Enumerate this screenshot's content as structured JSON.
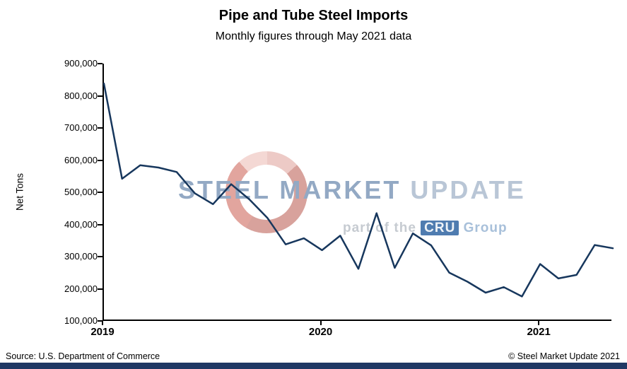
{
  "title": "Pipe and Tube Steel Imports",
  "subtitle": "Monthly figures through May 2021 data",
  "footer": {
    "source": "Source: U.S. Department of Commerce",
    "copyright": "© Steel Market Update 2021"
  },
  "watermark": {
    "brand_primary": "STEEL MARKET",
    "brand_secondary": "UPDATE",
    "tagline_prefix": "part of the",
    "tagline_brand": "CRU",
    "tagline_suffix": "Group"
  },
  "chart_data": {
    "type": "line",
    "title": "Pipe and Tube Steel Imports",
    "subtitle": "Monthly figures through May 2021 data",
    "ylabel": "Net Tons",
    "xlabel": "",
    "ylim": [
      100000,
      900000
    ],
    "y_tick_labels": [
      "900,000",
      "800,000",
      "700,000",
      "600,000",
      "500,000",
      "400,000",
      "300,000",
      "200,000",
      "100,000"
    ],
    "x_tick_labels": [
      "2019",
      "2020",
      "2021"
    ],
    "x_tick_month_index": [
      0,
      12,
      24
    ],
    "grid": false,
    "legend": "none",
    "line_color": "#17375D",
    "months": [
      "Jan 2019",
      "Feb 2019",
      "Mar 2019",
      "Apr 2019",
      "May 2019",
      "Jun 2019",
      "Jul 2019",
      "Aug 2019",
      "Sep 2019",
      "Oct 2019",
      "Nov 2019",
      "Dec 2019",
      "Jan 2020",
      "Feb 2020",
      "Mar 2020",
      "Apr 2020",
      "May 2020",
      "Jun 2020",
      "Jul 2020",
      "Aug 2020",
      "Sep 2020",
      "Oct 2020",
      "Nov 2020",
      "Dec 2020",
      "Jan 2021",
      "Feb 2021",
      "Mar 2021",
      "Apr 2021",
      "May 2021"
    ],
    "values": [
      838000,
      542000,
      584000,
      577000,
      563000,
      497000,
      463000,
      525000,
      478000,
      420000,
      338000,
      357000,
      320000,
      365000,
      262000,
      435000,
      265000,
      372000,
      335000,
      250000,
      222000,
      188000,
      205000,
      176000,
      277000,
      232000,
      243000,
      336000,
      326000
    ]
  }
}
